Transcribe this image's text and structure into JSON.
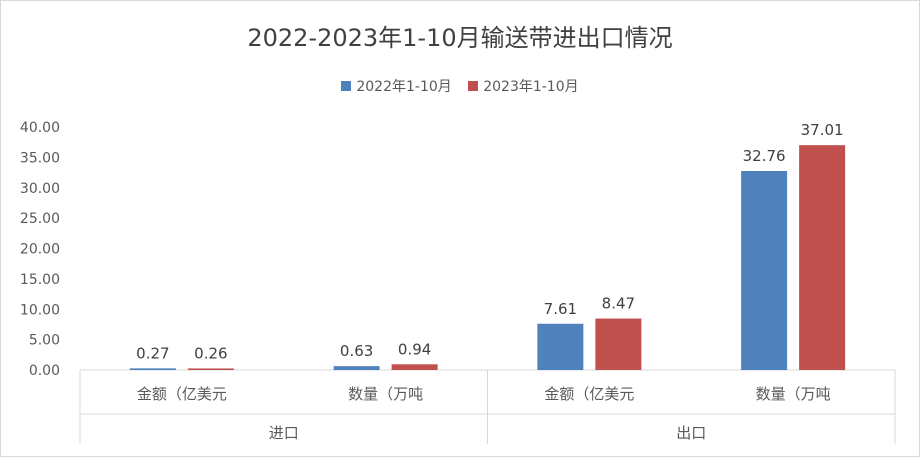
{
  "chart_data": {
    "type": "bar",
    "title": "2022-2023年1-10月输送带进出口情况",
    "groups": [
      {
        "label": "进口",
        "categories": [
          "金额（亿美元",
          "数量（万吨"
        ]
      },
      {
        "label": "出口",
        "categories": [
          "金额（亿美元",
          "数量（万吨"
        ]
      }
    ],
    "categories": [
      "金额（亿美元",
      "数量（万吨",
      "金额（亿美元",
      "数量（万吨"
    ],
    "series": [
      {
        "name": "2022年1-10月",
        "color": "#4f81bd",
        "values": [
          0.27,
          0.63,
          7.61,
          32.76
        ],
        "labels": [
          "0.27",
          "0.63",
          "7.61",
          "32.76"
        ]
      },
      {
        "name": "2023年1-10月",
        "color": "#c0504d",
        "values": [
          0.26,
          0.94,
          8.47,
          37.01
        ],
        "labels": [
          "0.26",
          "0.94",
          "8.47",
          "37.01"
        ]
      }
    ],
    "yticks": [
      "0.00",
      "5.00",
      "10.00",
      "15.00",
      "20.00",
      "25.00",
      "30.00",
      "35.00",
      "40.00"
    ],
    "ylim": [
      0,
      40
    ],
    "grid": false,
    "legend": "top-center"
  }
}
